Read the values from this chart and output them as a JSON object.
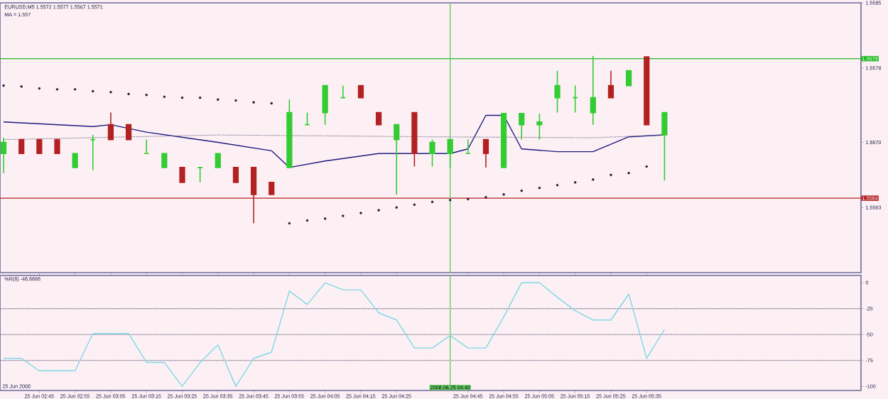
{
  "chart_data": [
    {
      "type": "candlestick",
      "title": "EURUSD,M5 1.5572 1.5577 1.5567 1.5571",
      "subtitle": "MA = 1.557",
      "x": [
        "2008-06-25T02:35",
        "2008-06-25T02:40",
        "2008-06-25T02:45",
        "2008-06-25T02:50",
        "2008-06-25T02:55",
        "2008-06-25T03:00",
        "2008-06-25T03:05",
        "2008-06-25T03:10",
        "2008-06-25T03:15",
        "2008-06-25T03:20",
        "2008-06-25T03:25",
        "2008-06-25T03:30",
        "2008-06-25T03:35",
        "2008-06-25T03:40",
        "2008-06-25T03:45",
        "2008-06-25T03:50",
        "2008-06-25T03:55",
        "2008-06-25T04:00",
        "2008-06-25T04:05",
        "2008-06-25T04:10",
        "2008-06-25T04:15",
        "2008-06-25T04:20",
        "2008-06-25T04:25",
        "2008-06-25T04:30",
        "2008-06-25T04:35",
        "2008-06-25T04:40",
        "2008-06-25T04:45",
        "2008-06-25T04:50",
        "2008-06-25T04:55",
        "2008-06-25T05:00",
        "2008-06-25T05:05",
        "2008-06-25T05:10",
        "2008-06-25T05:15",
        "2008-06-25T05:20",
        "2008-06-25T05:25",
        "2008-06-25T05:30",
        "2008-06-25T05:35",
        "2008-06-25T05:40"
      ],
      "ohlc": [
        [
          1.55688,
          1.55705,
          1.55667,
          1.557
        ],
        [
          1.55703,
          1.55703,
          1.55688,
          1.55688
        ],
        [
          1.55703,
          1.55703,
          1.55688,
          1.55688
        ],
        [
          1.55703,
          1.55703,
          1.55688,
          1.55688
        ],
        [
          1.55673,
          1.55688,
          1.55673,
          1.55688
        ],
        [
          1.55703,
          1.55708,
          1.5567,
          1.55703
        ],
        [
          1.55719,
          1.55732,
          1.55703,
          1.55703
        ],
        [
          1.55719,
          1.55719,
          1.55703,
          1.55703
        ],
        [
          1.55688,
          1.55703,
          1.55688,
          1.55688
        ],
        [
          1.55673,
          1.55688,
          1.55673,
          1.55688
        ],
        [
          1.55673,
          1.55673,
          1.55657,
          1.55657
        ],
        [
          1.55673,
          1.55673,
          1.55657,
          1.55673
        ],
        [
          1.55673,
          1.55688,
          1.55673,
          1.55688
        ],
        [
          1.55673,
          1.55673,
          1.55657,
          1.55657
        ],
        [
          1.55673,
          1.55673,
          1.55613,
          1.55644
        ],
        [
          1.55657,
          1.55657,
          1.55644,
          1.55644
        ],
        [
          1.55673,
          1.55746,
          1.55673,
          1.55732
        ],
        [
          1.55719,
          1.55732,
          1.55719,
          1.55719
        ],
        [
          1.55732,
          1.55761,
          1.55719,
          1.55761
        ],
        [
          1.55748,
          1.55761,
          1.55748,
          1.55748
        ],
        [
          1.55761,
          1.55761,
          1.55748,
          1.55748
        ],
        [
          1.55732,
          1.55732,
          1.55719,
          1.55719
        ],
        [
          1.55703,
          1.55719,
          1.55644,
          1.55719
        ],
        [
          1.55732,
          1.55732,
          1.55674,
          1.55688
        ],
        [
          1.55688,
          1.55703,
          1.55674,
          1.557
        ],
        [
          1.55688,
          1.55703,
          1.55673,
          1.55703
        ],
        [
          1.55688,
          1.55703,
          1.55688,
          1.55688
        ],
        [
          1.55703,
          1.55703,
          1.55673,
          1.55688
        ],
        [
          1.55673,
          1.55731,
          1.55673,
          1.55731
        ],
        [
          1.55719,
          1.55731,
          1.55703,
          1.55731
        ],
        [
          1.55719,
          1.55731,
          1.55703,
          1.55722
        ],
        [
          1.55748,
          1.55777,
          1.55732,
          1.55761
        ],
        [
          1.55748,
          1.55761,
          1.55732,
          1.55748
        ],
        [
          1.55732,
          1.55793,
          1.55719,
          1.55748
        ],
        [
          1.55761,
          1.55777,
          1.55748,
          1.55748
        ],
        [
          1.55761,
          1.55777,
          1.55761,
          1.55777
        ],
        [
          1.55792,
          1.55792,
          1.55719,
          1.55719
        ],
        [
          1.55708,
          1.55732,
          1.55659,
          1.55732
        ]
      ],
      "colors": [
        "#33cc33",
        "#b22222",
        "#b22222",
        "#b22222",
        "#33cc33",
        "#33cc33",
        "#b22222",
        "#b22222",
        "#33cc33",
        "#33cc33",
        "#b22222",
        "#33cc33",
        "#33cc33",
        "#b22222",
        "#b22222",
        "#b22222",
        "#33cc33",
        "#33cc33",
        "#33cc33",
        "#33cc33",
        "#b22222",
        "#b22222",
        "#33cc33",
        "#b22222",
        "#33cc33",
        "#33cc33",
        "#33cc33",
        "#b22222",
        "#33cc33",
        "#33cc33",
        "#33cc33",
        "#33cc33",
        "#33cc33",
        "#33cc33",
        "#b22222",
        "#33cc33",
        "#b22222",
        "#33cc33"
      ],
      "series": [
        {
          "type": "line",
          "color": "#1a1a80",
          "x": [
            "2008-06-25T02:35",
            "2008-06-25T03:00",
            "2008-06-25T03:05",
            "2008-06-25T03:15",
            "2008-06-25T03:35",
            "2008-06-25T03:50",
            "2008-06-25T03:55",
            "2008-06-25T04:05",
            "2008-06-25T04:20",
            "2008-06-25T04:40",
            "2008-06-25T04:45",
            "2008-06-25T04:50",
            "2008-06-25T04:55",
            "2008-06-25T05:00",
            "2008-06-25T05:10",
            "2008-06-25T05:20",
            "2008-06-25T05:30",
            "2008-06-25T05:40"
          ],
          "values": [
            1.55722,
            1.55717,
            1.55719,
            1.55711,
            1.557,
            1.55691,
            1.55673,
            1.5568,
            1.55688,
            1.55688,
            1.55693,
            1.55729,
            1.55729,
            1.55693,
            1.5569,
            1.5569,
            1.55706,
            1.55708
          ]
        },
        {
          "type": "line",
          "line_style": "dotted",
          "color": "#707090",
          "x": [
            "2008-06-25T02:35",
            "2008-06-25T03:35",
            "2008-06-25T04:35",
            "2008-06-25T05:20",
            "2008-06-25T05:40"
          ],
          "values": [
            1.55703,
            1.55708,
            1.55706,
            1.55705,
            1.55708
          ]
        },
        {
          "type": "scatter",
          "marker": "circle",
          "color": "#202040",
          "values": [
            1.55761,
            1.5576,
            1.55758,
            1.55757,
            1.55757,
            1.55755,
            1.55754,
            1.55752,
            1.55751,
            1.55749,
            1.55748,
            1.55748,
            1.55746,
            1.55745,
            1.55743,
            1.55742,
            1.55613,
            1.55616,
            1.55618,
            1.55621,
            1.55624,
            1.55627,
            1.5563,
            1.55633,
            1.55636,
            1.55638,
            1.55639,
            1.55641,
            1.55644,
            1.55648,
            1.55651,
            1.55654,
            1.55657,
            1.5566,
            1.55665,
            1.55667,
            1.55674,
            null
          ]
        }
      ],
      "xlim": [
        "2008-06-25T02:34",
        "2008-06-25T06:35"
      ],
      "xticks": [
        {
          "value": "2008-06-25T02:45",
          "label": null
        },
        {
          "value": "2008-06-25T02:55",
          "label": null
        },
        {
          "value": "2008-06-25T03:05",
          "label": null
        },
        {
          "value": "2008-06-25T03:15",
          "label": null
        },
        {
          "value": "2008-06-25T03:25",
          "label": null
        },
        {
          "value": "2008-06-25T03:35",
          "label": null
        },
        {
          "value": "2008-06-25T03:45",
          "label": null
        },
        {
          "value": "2008-06-25T03:55",
          "label": null
        },
        {
          "value": "2008-06-25T04:05",
          "label": null
        },
        {
          "value": "2008-06-25T04:15",
          "label": null
        },
        {
          "value": "2008-06-25T04:25",
          "label": null
        },
        {
          "value": "2008-06-25T04:45",
          "label": null
        },
        {
          "value": "2008-06-25T04:55",
          "label": null
        },
        {
          "value": "2008-06-25T05:05",
          "label": null
        },
        {
          "value": "2008-06-25T05:15",
          "label": null
        },
        {
          "value": "2008-06-25T05:25",
          "label": null
        },
        {
          "value": "2008-06-25T05:35",
          "label": null
        }
      ],
      "ylim": [
        1.5556,
        1.5585
      ],
      "yticks": [
        {
          "value": 1.5585,
          "label": "1.5585"
        },
        {
          "value": 1.5578,
          "label": "1.5578"
        },
        {
          "value": 1.557,
          "label": "1.5570"
        },
        {
          "value": 1.5563,
          "label": "1.5563"
        }
      ],
      "tick_labels": "y",
      "ref_lines": [
        {
          "axis": "y",
          "value": 1.5579,
          "label": "1.5579",
          "color": "#22bb22"
        },
        {
          "axis": "y",
          "value": 1.5564,
          "label": "1.5564",
          "color": "#b22222"
        },
        {
          "axis": "x",
          "value": "2008-06-25T04:40",
          "color": "#66cc66"
        }
      ]
    },
    {
      "type": "line",
      "title": "%R(8) -46.6666",
      "color": "#7fd8e6",
      "annotations": [
        "25 Jun 2008"
      ],
      "x": [
        "2008-06-25T02:35",
        "2008-06-25T02:40",
        "2008-06-25T02:45",
        "2008-06-25T02:50",
        "2008-06-25T02:55",
        "2008-06-25T03:00",
        "2008-06-25T03:05",
        "2008-06-25T03:10",
        "2008-06-25T03:15",
        "2008-06-25T03:20",
        "2008-06-25T03:25",
        "2008-06-25T03:30",
        "2008-06-25T03:35",
        "2008-06-25T03:40",
        "2008-06-25T03:45",
        "2008-06-25T03:50",
        "2008-06-25T03:55",
        "2008-06-25T04:00",
        "2008-06-25T04:05",
        "2008-06-25T04:10",
        "2008-06-25T04:15",
        "2008-06-25T04:20",
        "2008-06-25T04:25",
        "2008-06-25T04:30",
        "2008-06-25T04:35",
        "2008-06-25T04:40",
        "2008-06-25T04:45",
        "2008-06-25T04:50",
        "2008-06-25T04:55",
        "2008-06-25T05:00",
        "2008-06-25T05:05",
        "2008-06-25T05:10",
        "2008-06-25T05:15",
        "2008-06-25T05:20",
        "2008-06-25T05:25",
        "2008-06-25T05:30",
        "2008-06-25T05:35",
        "2008-06-25T05:40"
      ],
      "values": [
        -73,
        -73,
        -85,
        -85,
        -85,
        -49,
        -49,
        -49,
        -77,
        -77,
        -100,
        -77,
        -60,
        -100,
        -73,
        -67,
        -8,
        -21,
        0,
        -7,
        -7,
        -29,
        -36,
        -63,
        -63,
        -51,
        -63,
        -63,
        -33,
        0,
        0,
        -14,
        -27,
        -36,
        -36,
        -11,
        -73,
        -45
      ],
      "xlim": [
        "2008-06-25T02:34",
        "2008-06-25T06:35"
      ],
      "xticks": [
        {
          "value": "2008-06-25T02:45",
          "label": "25 Jun 02:45"
        },
        {
          "value": "2008-06-25T02:55",
          "label": "25 Jun 02:55"
        },
        {
          "value": "2008-06-25T03:05",
          "label": "25 Jun 03:05"
        },
        {
          "value": "2008-06-25T03:15",
          "label": "25 Jun 03:15"
        },
        {
          "value": "2008-06-25T03:25",
          "label": "25 Jun 03:25"
        },
        {
          "value": "2008-06-25T03:35",
          "label": "25 Jun 03:35"
        },
        {
          "value": "2008-06-25T03:45",
          "label": "25 Jun 03:45"
        },
        {
          "value": "2008-06-25T03:55",
          "label": "25 Jun 03:55"
        },
        {
          "value": "2008-06-25T04:05",
          "label": "25 Jun 04:05"
        },
        {
          "value": "2008-06-25T04:15",
          "label": "25 Jun 04:15"
        },
        {
          "value": "2008-06-25T04:25",
          "label": "25 Jun 04:25"
        },
        {
          "value": "2008-06-25T04:45",
          "label": "25 Jun 04:45"
        },
        {
          "value": "2008-06-25T04:55",
          "label": "25 Jun 04:55"
        },
        {
          "value": "2008-06-25T05:05",
          "label": "25 Jun 05:05"
        },
        {
          "value": "2008-06-25T05:15",
          "label": "25 Jun 05:15"
        },
        {
          "value": "2008-06-25T05:25",
          "label": "25 Jun 05:25"
        },
        {
          "value": "2008-06-25T05:35",
          "label": "25 Jun 05:35"
        }
      ],
      "ylim": [
        -104,
        7
      ],
      "yticks": [
        0,
        -25,
        -50,
        -75,
        -100
      ],
      "ref_lines": [
        {
          "axis": "y",
          "value": -25,
          "color": "#505070",
          "line_style": "dotted"
        },
        {
          "axis": "y",
          "value": -50,
          "color": "#505070",
          "line_style": "dotted"
        },
        {
          "axis": "y",
          "value": -75,
          "color": "#505070",
          "line_style": "dotted"
        },
        {
          "axis": "x",
          "value": "2008-06-25T04:40",
          "label": "2008.06.25 04:40",
          "color": "#66cc66"
        }
      ]
    }
  ]
}
